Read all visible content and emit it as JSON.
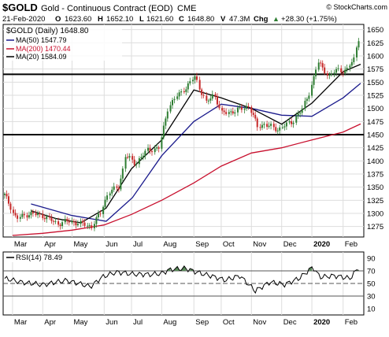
{
  "header": {
    "symbol": "$GOLD",
    "description": "Gold - Continuous Contract (EOD)",
    "exchange": "CME",
    "copyright": "© StockCharts.com",
    "date": "21-Feb-2020",
    "open_label": "O",
    "open": "1623.60",
    "high_label": "H",
    "high": "1652.10",
    "low_label": "L",
    "low": "1621.60",
    "close_label": "C",
    "close": "1648.80",
    "vol_label": "V",
    "vol": "47.3M",
    "chg_label": "Chg",
    "chg": "+28.30 (+1.75%)",
    "chg_arrow": "▲"
  },
  "legend": {
    "price": "$GOLD (Daily) 1648.80",
    "ma50": "MA(50) 1547.79",
    "ma200": "MA(200) 1470.44",
    "ma20": "MA(20) 1584.09"
  },
  "rsi_legend": "RSI(14) 78.49",
  "colors": {
    "ma50": "#1a1a8c",
    "ma200": "#c8102e",
    "ma20": "#000000",
    "up_candle": "#2e7d32",
    "down_candle": "#c62828",
    "rsi_fill": "#5a8a5a",
    "hline": "#000000"
  },
  "chart_data": [
    {
      "type": "line",
      "title": "$GOLD Gold - Continuous Contract (EOD) CME",
      "subtitle": "$GOLD (Daily) 1648.80",
      "x_tick_labels": [
        "Mar",
        "Apr",
        "May",
        "Jun",
        "Jul",
        "Aug",
        "Sep",
        "Oct",
        "Nov",
        "Dec",
        "2020",
        "Feb"
      ],
      "y_tick_labels": [
        1275,
        1300,
        1325,
        1350,
        1375,
        1400,
        1425,
        1450,
        1475,
        1500,
        1525,
        1550,
        1575,
        1600,
        1625,
        1650
      ],
      "ylim": [
        1255,
        1660
      ],
      "grid": true,
      "legend_position": "top-left",
      "horizontal_lines": [
        1565,
        1450
      ],
      "series": [
        {
          "name": "$GOLD (Daily)",
          "style": "candle",
          "x": [
            "2019-02-21",
            "2019-03-05",
            "2019-03-19",
            "2019-04-02",
            "2019-04-16",
            "2019-04-25",
            "2019-05-07",
            "2019-05-21",
            "2019-05-30",
            "2019-06-07",
            "2019-06-18",
            "2019-06-25",
            "2019-07-05",
            "2019-07-17",
            "2019-07-30",
            "2019-08-07",
            "2019-08-15",
            "2019-08-26",
            "2019-09-04",
            "2019-09-16",
            "2019-09-24",
            "2019-10-01",
            "2019-10-15",
            "2019-10-30",
            "2019-11-07",
            "2019-11-14",
            "2019-11-28",
            "2019-12-13",
            "2019-12-24",
            "2020-01-03",
            "2020-01-08",
            "2020-01-20",
            "2020-01-28",
            "2020-02-06",
            "2020-02-14",
            "2020-02-21"
          ],
          "values": [
            1335,
            1290,
            1300,
            1295,
            1280,
            1285,
            1282,
            1275,
            1300,
            1340,
            1350,
            1410,
            1395,
            1420,
            1425,
            1500,
            1520,
            1540,
            1560,
            1510,
            1530,
            1490,
            1495,
            1505,
            1465,
            1470,
            1460,
            1475,
            1500,
            1550,
            1590,
            1560,
            1575,
            1570,
            1595,
            1648.8
          ]
        },
        {
          "name": "MA(50)",
          "x": [
            "2019-03-20",
            "2019-05-01",
            "2019-06-05",
            "2019-07-02",
            "2019-08-01",
            "2019-09-03",
            "2019-10-01",
            "2019-11-01",
            "2019-12-02",
            "2020-01-02",
            "2020-02-03",
            "2020-02-21"
          ],
          "values": [
            1318,
            1296,
            1285,
            1330,
            1410,
            1475,
            1508,
            1500,
            1487,
            1485,
            1520,
            1547.79
          ]
        },
        {
          "name": "MA(200)",
          "x": [
            "2019-03-01",
            "2019-04-01",
            "2019-05-01",
            "2019-06-03",
            "2019-07-01",
            "2019-08-01",
            "2019-09-03",
            "2019-10-01",
            "2019-11-01",
            "2019-12-02",
            "2020-01-02",
            "2020-02-03",
            "2020-02-21"
          ],
          "values": [
            1258,
            1262,
            1268,
            1278,
            1298,
            1325,
            1358,
            1390,
            1415,
            1425,
            1440,
            1455,
            1470.44
          ]
        },
        {
          "name": "MA(20)",
          "x": [
            "2019-03-20",
            "2019-04-15",
            "2019-05-10",
            "2019-06-05",
            "2019-07-01",
            "2019-08-01",
            "2019-09-03",
            "2019-10-01",
            "2019-11-01",
            "2019-12-02",
            "2020-01-02",
            "2020-02-03",
            "2020-02-21"
          ],
          "values": [
            1305,
            1290,
            1282,
            1310,
            1385,
            1440,
            1535,
            1520,
            1500,
            1470,
            1510,
            1570,
            1584.09
          ]
        }
      ]
    },
    {
      "type": "line",
      "title": "RSI(14) 78.49",
      "y_tick_labels": [
        10,
        30,
        50,
        70,
        90
      ],
      "ylim": [
        0,
        100
      ],
      "reference_lines": [
        30,
        50,
        70
      ],
      "series": [
        {
          "name": "RSI(14)",
          "x": [
            "2019-02-21",
            "2019-03-10",
            "2019-04-01",
            "2019-04-25",
            "2019-05-20",
            "2019-06-01",
            "2019-06-15",
            "2019-07-01",
            "2019-07-20",
            "2019-08-01",
            "2019-08-10",
            "2019-08-25",
            "2019-09-05",
            "2019-09-20",
            "2019-10-05",
            "2019-10-20",
            "2019-11-05",
            "2019-11-20",
            "2019-12-05",
            "2019-12-20",
            "2020-01-03",
            "2020-01-10",
            "2020-01-25",
            "2020-02-10",
            "2020-02-21"
          ],
          "values": [
            58,
            52,
            48,
            55,
            45,
            60,
            68,
            65,
            64,
            66,
            72,
            74,
            68,
            62,
            55,
            62,
            38,
            52,
            48,
            58,
            76,
            60,
            62,
            58,
            78.49
          ]
        }
      ]
    }
  ]
}
